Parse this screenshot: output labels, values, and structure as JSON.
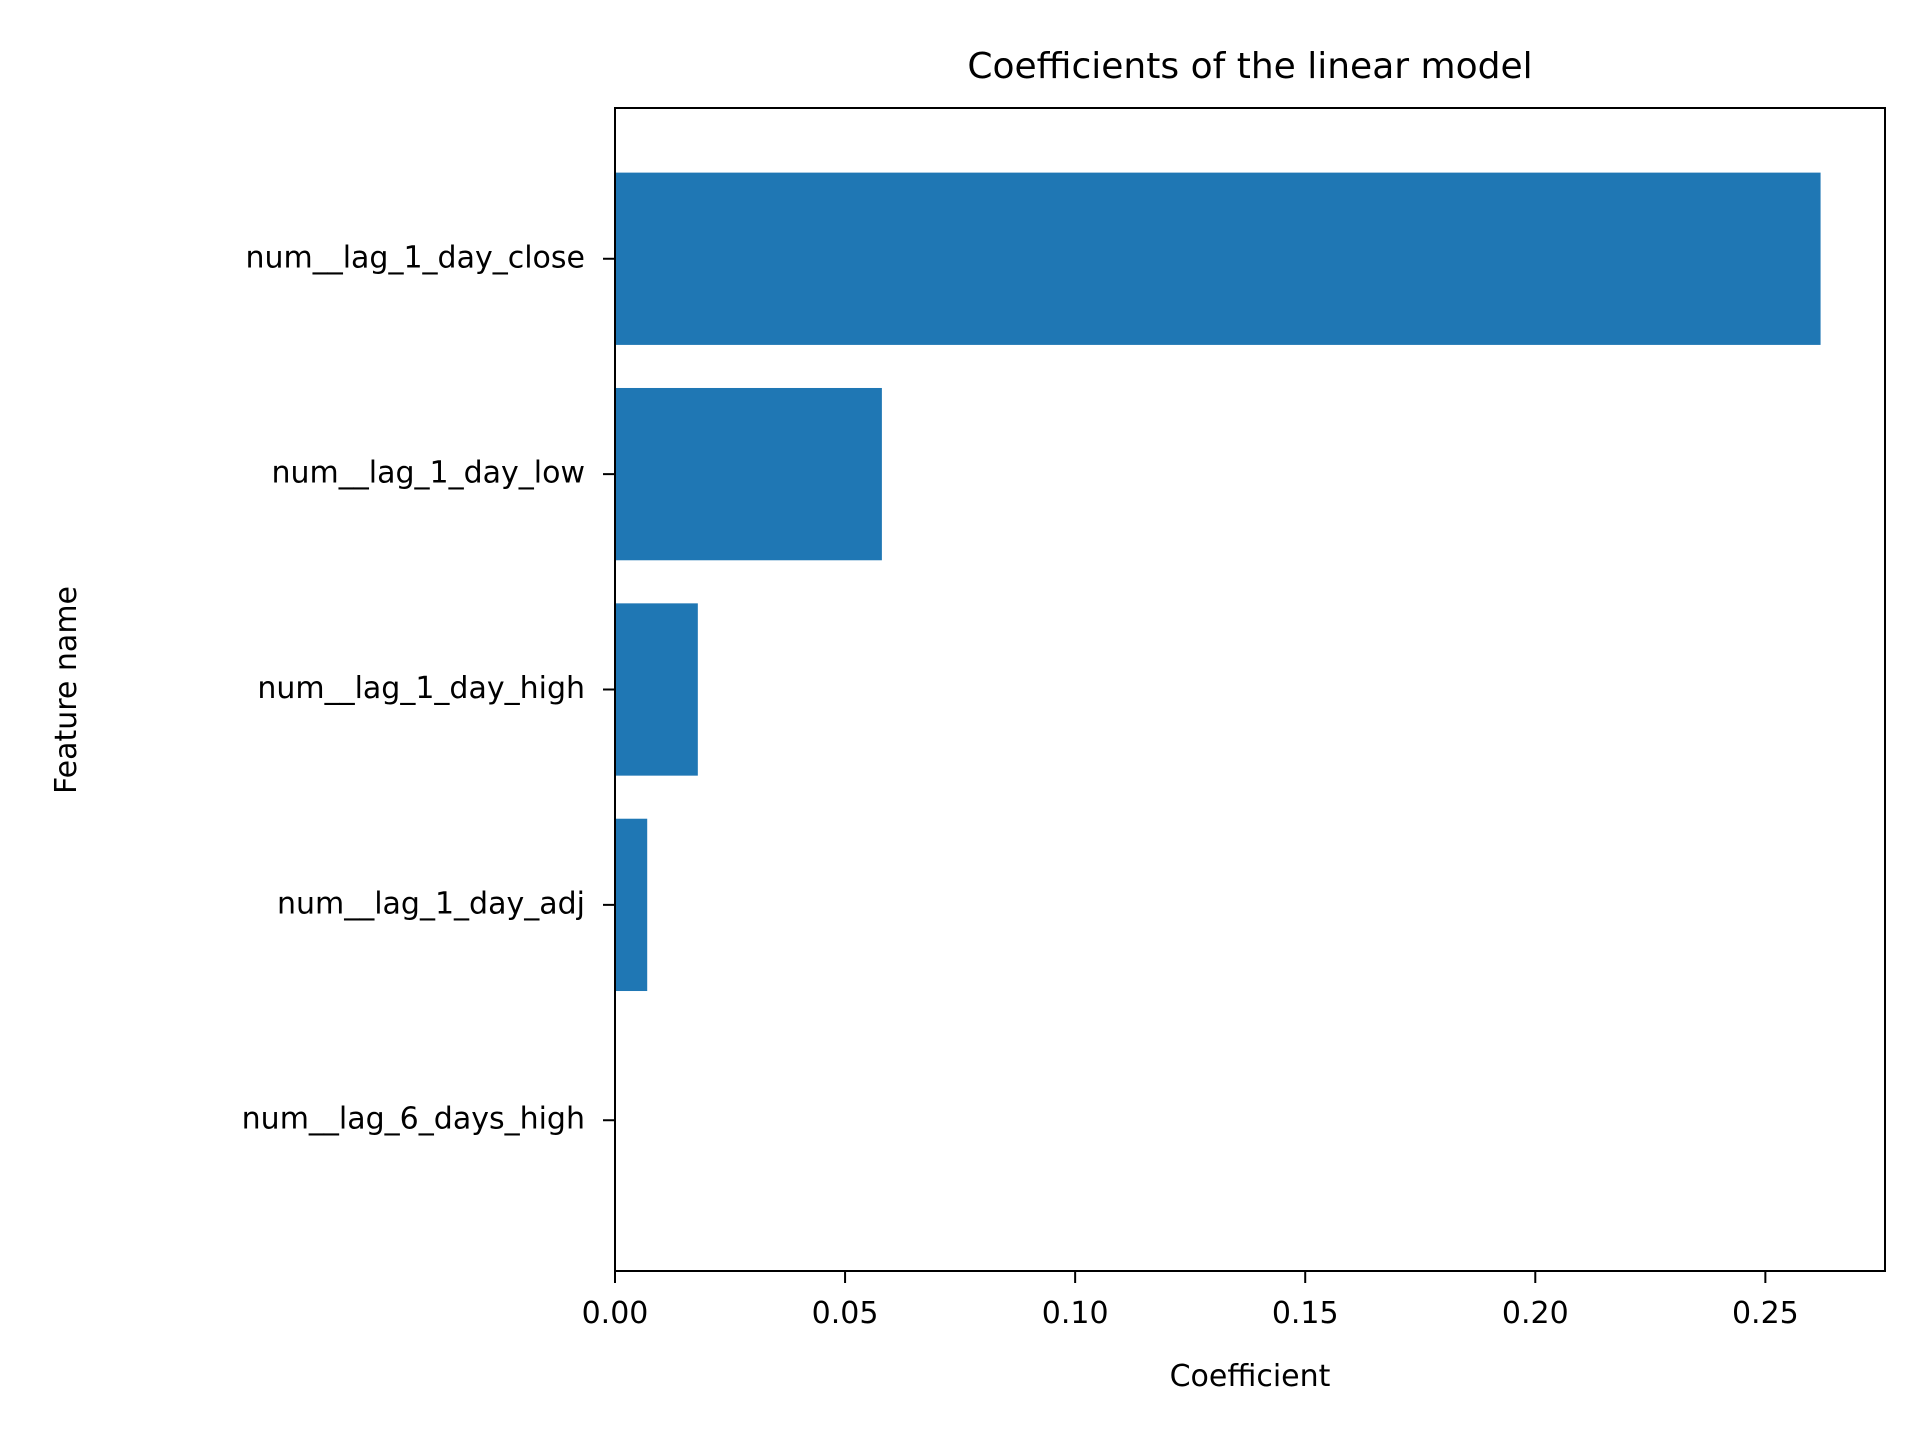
{
  "chart_data": {
    "type": "bar",
    "orientation": "horizontal",
    "title": "Coefficients of the linear model",
    "xlabel": "Coefficient",
    "ylabel": "Feature name",
    "categories": [
      "num__lag_1_day_close",
      "num__lag_1_day_low",
      "num__lag_1_day_high",
      "num__lag_1_day_adj",
      "num__lag_6_days_high"
    ],
    "values": [
      0.262,
      0.058,
      0.018,
      0.007,
      0.0
    ],
    "xlim": [
      0.0,
      0.276
    ],
    "xticks": [
      "0.00",
      "0.05",
      "0.10",
      "0.15",
      "0.20",
      "0.25"
    ],
    "xtick_values": [
      0.0,
      0.05,
      0.1,
      0.15,
      0.2,
      0.25
    ],
    "grid": false,
    "colors": {
      "bar": "#1f77b4",
      "axis": "#000000"
    }
  }
}
